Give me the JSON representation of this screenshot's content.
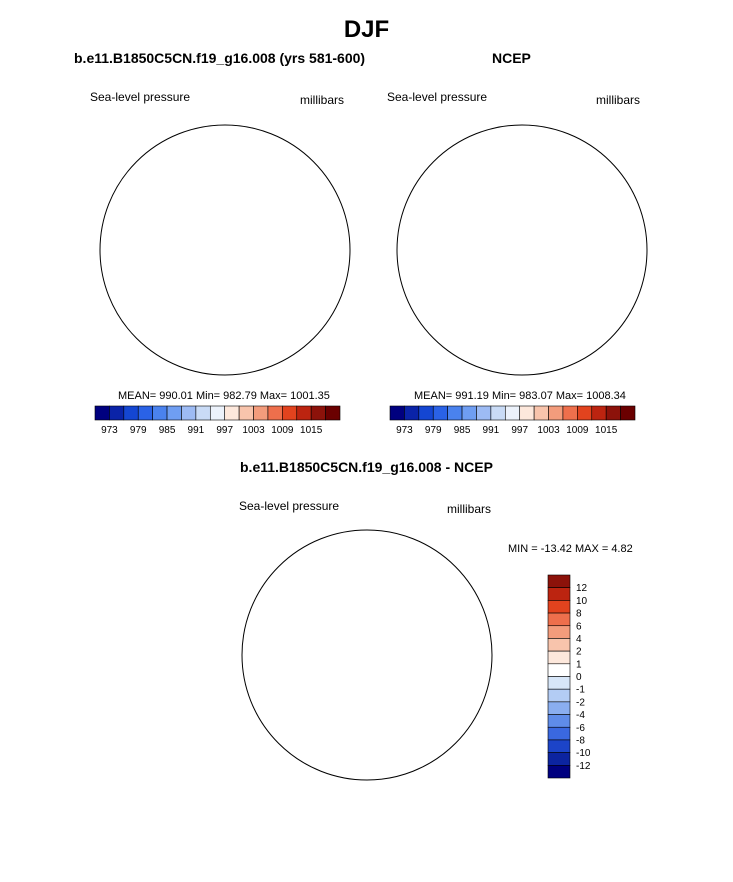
{
  "figure": {
    "title": "DJF"
  },
  "chart_data": [
    {
      "type": "heatmap",
      "projection": "south polar stereographic",
      "title": "b.e11.B1850C5CN.f19_g16.008 (yrs 581-600)",
      "left_label": "Sea-level pressure",
      "right_label": "millibars",
      "stats_text": "MEAN= 990.01  Min= 982.79  Max= 1001.35",
      "mean": 990.01,
      "min": 982.79,
      "max": 1001.35,
      "colorbar": {
        "orientation": "horizontal",
        "levels": [
          "973",
          "979",
          "985",
          "991",
          "997",
          "1003",
          "1009",
          "1015"
        ],
        "colors": [
          "#00007f",
          "#0a23a8",
          "#1446d2",
          "#2a62e6",
          "#4a82ee",
          "#6f9ef2",
          "#9dbbf4",
          "#c9dbf6",
          "#ecf2fb",
          "#fde8dc",
          "#f8c4ac",
          "#f39c7c",
          "#ee6f4c",
          "#e2431e",
          "#bc2410",
          "#8c120a",
          "#6a0000"
        ]
      }
    },
    {
      "type": "heatmap",
      "projection": "south polar stereographic",
      "title": "NCEP",
      "left_label": "Sea-level pressure",
      "right_label": "millibars",
      "stats_text": "MEAN= 991.19  Min= 983.07  Max= 1008.34",
      "mean": 991.19,
      "min": 983.07,
      "max": 1008.34,
      "colorbar": {
        "orientation": "horizontal",
        "levels": [
          "973",
          "979",
          "985",
          "991",
          "997",
          "1003",
          "1009",
          "1015"
        ],
        "colors": [
          "#00007f",
          "#0a23a8",
          "#1446d2",
          "#2a62e6",
          "#4a82ee",
          "#6f9ef2",
          "#9dbbf4",
          "#c9dbf6",
          "#ecf2fb",
          "#fde8dc",
          "#f8c4ac",
          "#f39c7c",
          "#ee6f4c",
          "#e2431e",
          "#bc2410",
          "#8c120a",
          "#6a0000"
        ]
      }
    },
    {
      "type": "heatmap",
      "projection": "south polar stereographic",
      "title": "b.e11.B1850C5CN.f19_g16.008 - NCEP",
      "left_label": "Sea-level pressure",
      "right_label": "millibars",
      "stats_text": "MIN = -13.42 MAX =   4.82",
      "min": -13.42,
      "max": 4.82,
      "colorbar": {
        "orientation": "vertical",
        "levels": [
          "12",
          "10",
          "8",
          "6",
          "4",
          "2",
          "1",
          "0",
          "-1",
          "-2",
          "-4",
          "-6",
          "-8",
          "-10",
          "-12"
        ],
        "colors": [
          "#8c120a",
          "#bc2410",
          "#e2431e",
          "#ee6f4c",
          "#f39c7c",
          "#f8c4ac",
          "#fde8dc",
          "#ffffff",
          "#d7e6f8",
          "#b3ccf4",
          "#8aaef0",
          "#5f8ce9",
          "#3a68e0",
          "#1c44c8",
          "#0c24a0",
          "#00007f"
        ]
      }
    }
  ]
}
